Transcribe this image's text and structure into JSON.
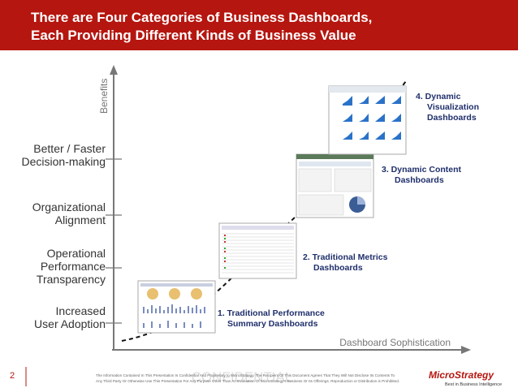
{
  "header": {
    "title": [
      "There are Four Categories of Business Dashboards,",
      "Each Providing Different Kinds of Business Value"
    ]
  },
  "axis": {
    "y_label": "Benefits",
    "x_label": "Dashboard Sophistication"
  },
  "benefits": [
    {
      "lines": [
        "Better / Faster",
        "Decision-making"
      ]
    },
    {
      "lines": [
        "Organizational",
        "Alignment"
      ]
    },
    {
      "lines": [
        "Operational",
        "Performance",
        "Transparency"
      ]
    },
    {
      "lines": [
        "Increased",
        "User Adoption"
      ]
    }
  ],
  "stages": [
    {
      "lines": [
        "1. Traditional Performance",
        "Summary  Dashboards"
      ]
    },
    {
      "lines": [
        "2. Traditional Metrics",
        "Dashboards"
      ]
    },
    {
      "lines": [
        "3.  Dynamic Content",
        "Dashboards"
      ]
    },
    {
      "lines": [
        "4.  Dynamic",
        "Visualization",
        "Dashboards"
      ]
    }
  ],
  "footer": {
    "page_number": "2",
    "confidential": "CONFIDENTIAL",
    "disclaimer": [
      "The Information Contained In This Presentation Is Confidential And Proprietary to MicroStrategy. The Recipient Of This Document Agrees That They Will Not Disclose Its Contents To",
      "Any Third Party Or Otherwise Use This Presentation For Any Purpose Other Than An Evaluation Of MicroStrategy's Business Or Its Offerings. Reproduction or Distribution is Prohibited."
    ]
  },
  "logo": {
    "name": "MicroStrategy",
    "tagline": "Best in Business Intelligence"
  }
}
